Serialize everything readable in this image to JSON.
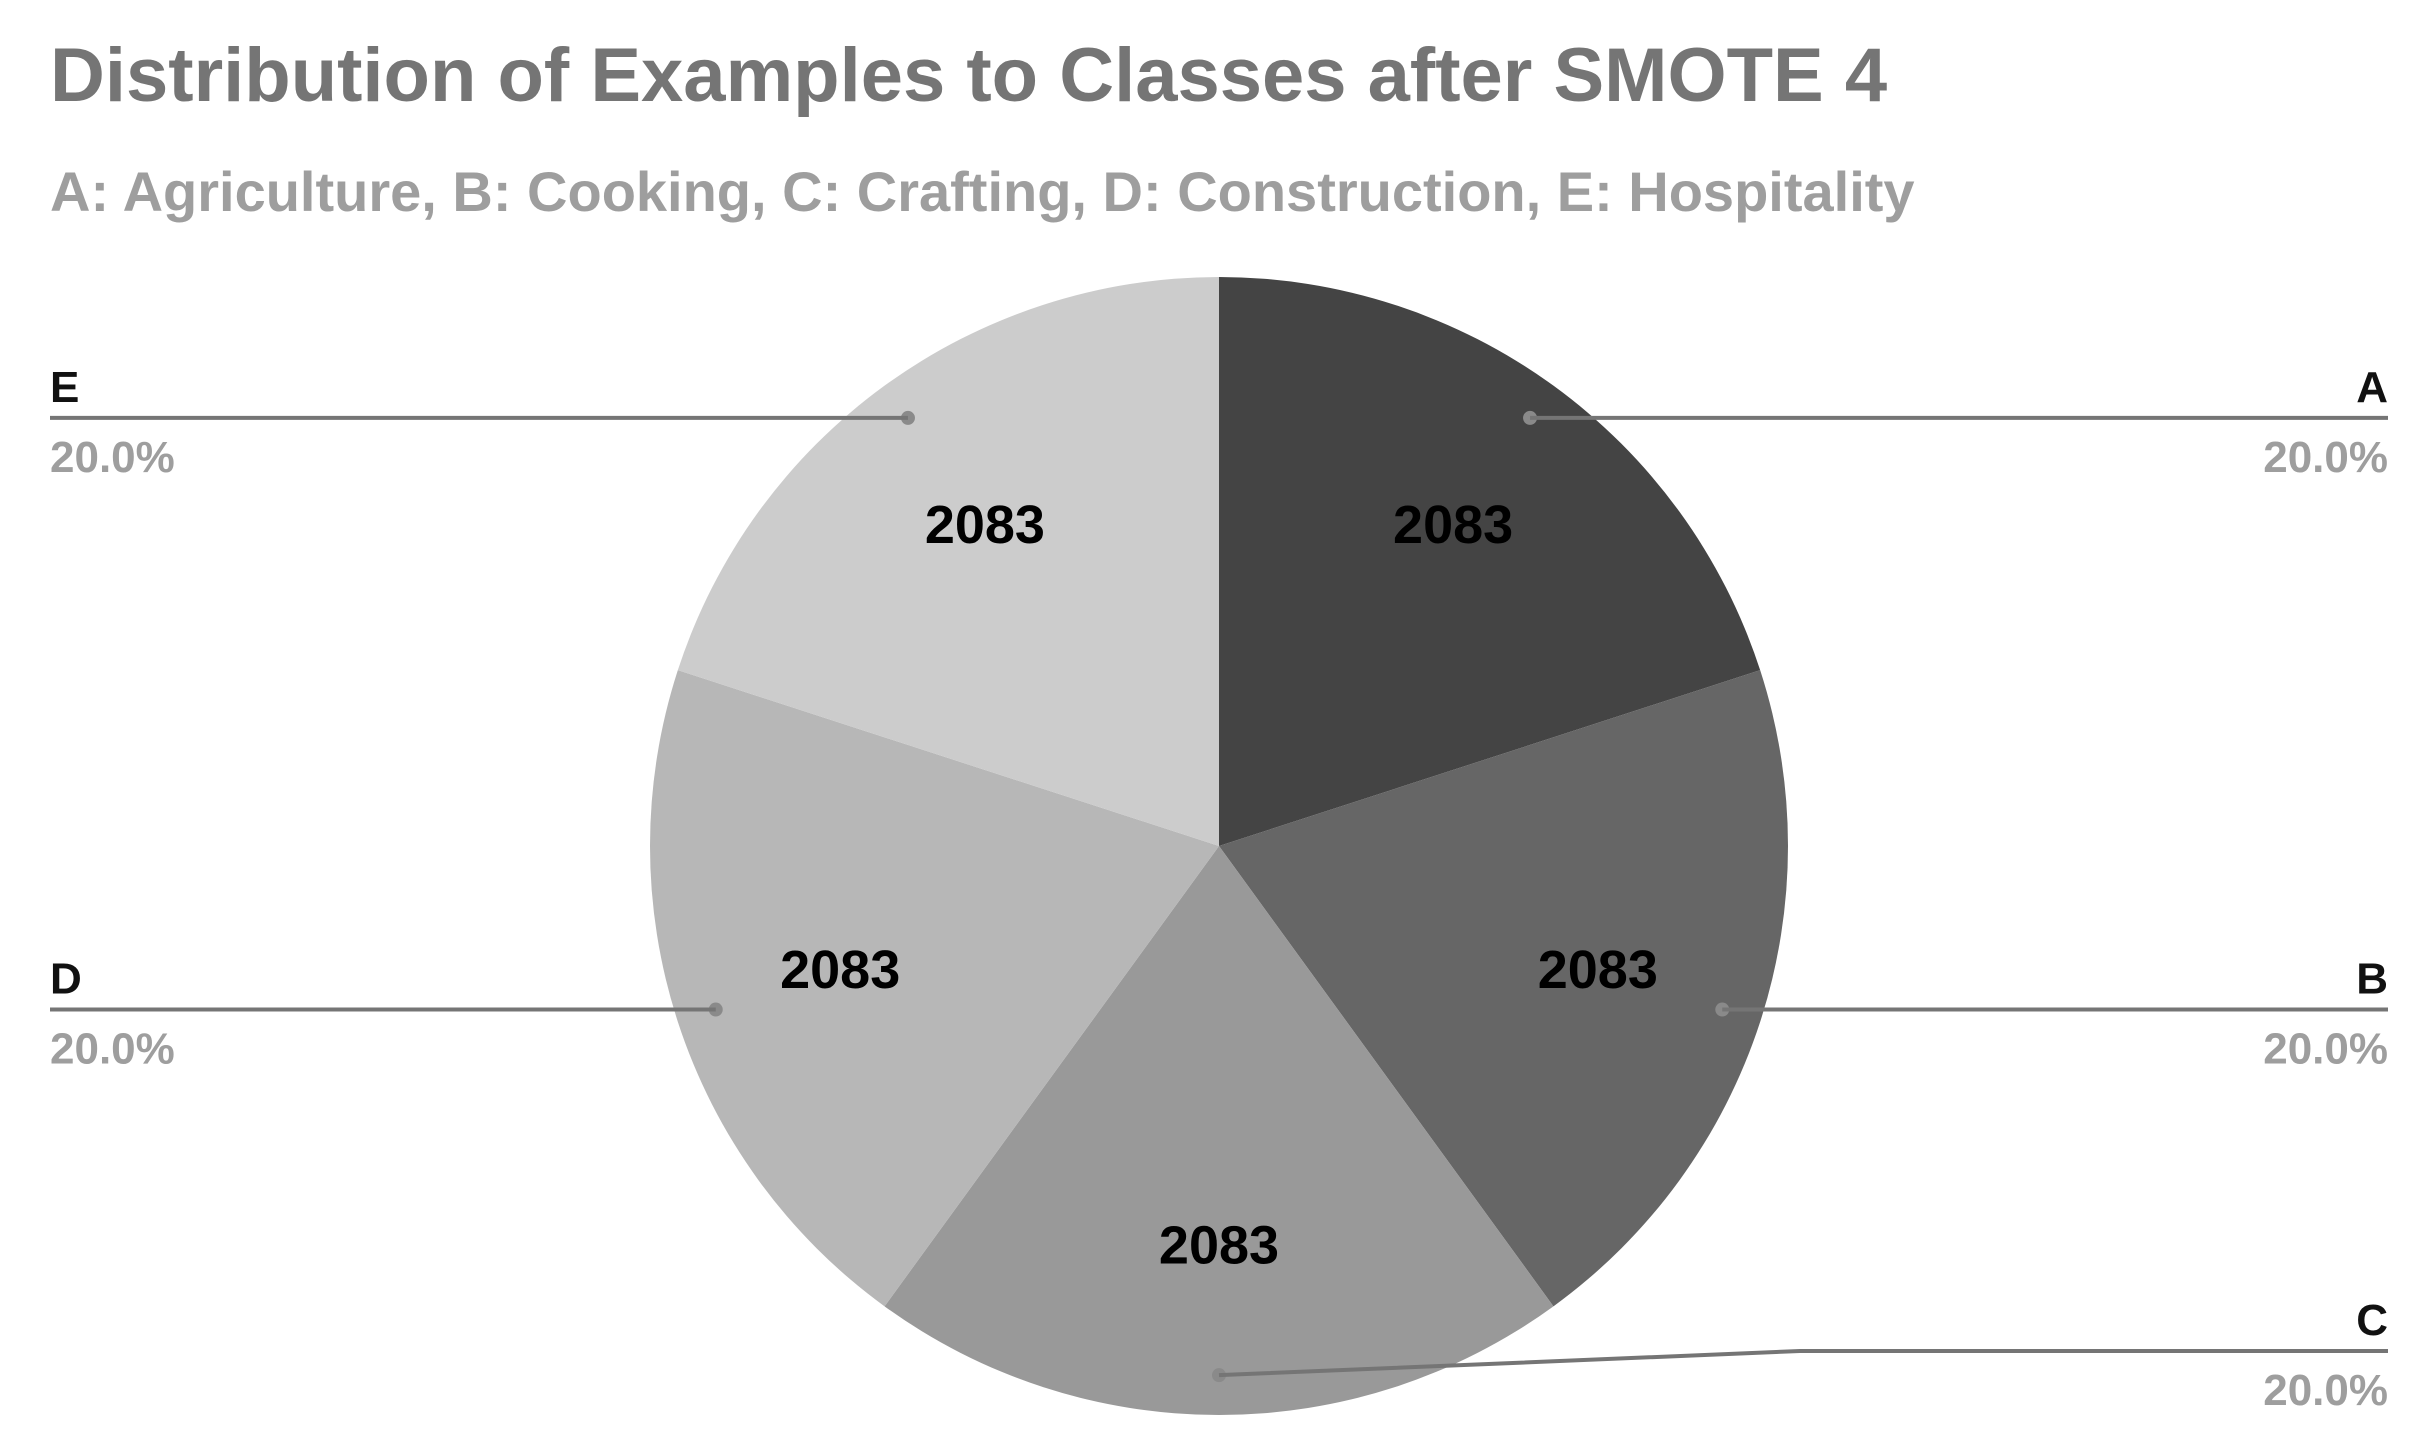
{
  "chart_data": {
    "type": "pie",
    "title": "Distribution of Examples to Classes after SMOTE 4",
    "subtitle": "A: Agriculture, B: Cooking, C: Crafting, D: Construction, E: Hospitality",
    "categories": [
      "A",
      "B",
      "C",
      "D",
      "E"
    ],
    "values": [
      2083,
      2083,
      2083,
      2083,
      2083
    ],
    "percent_labels": [
      "20.0%",
      "20.0%",
      "20.0%",
      "20.0%",
      "20.0%"
    ],
    "colors": [
      "#444444",
      "#666666",
      "#999999",
      "#b7b7b7",
      "#cccccc"
    ],
    "start_angle": "12 o'clock",
    "direction": "clockwise",
    "legend_position": "labels outside with leader lines"
  }
}
